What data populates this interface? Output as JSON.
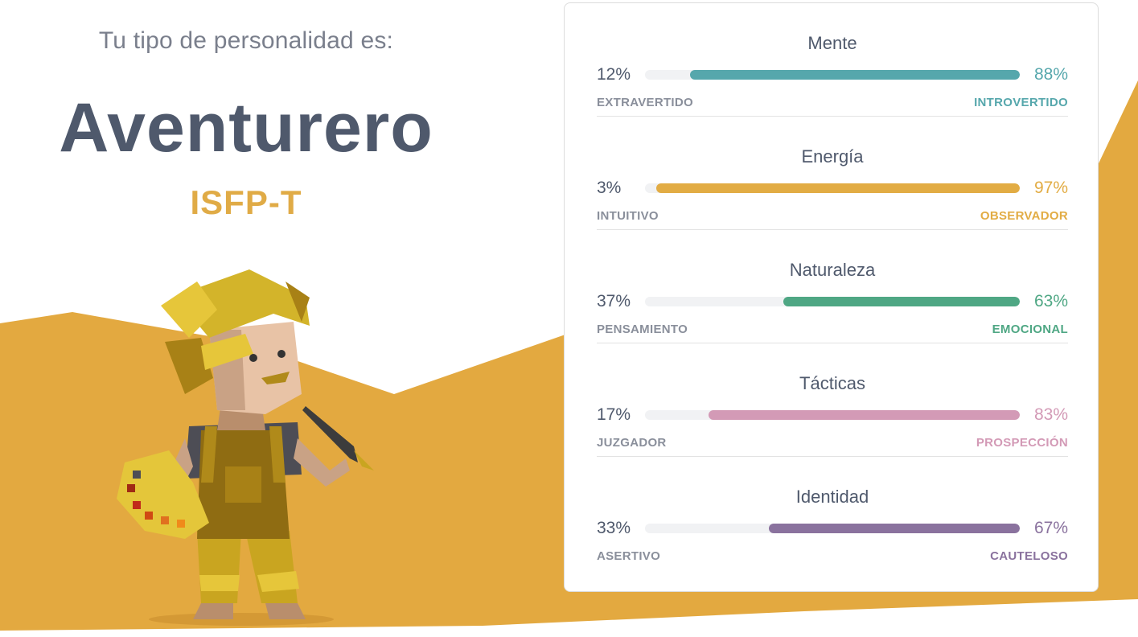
{
  "header": {
    "intro": "Tu tipo de personalidad es:",
    "type_name": "Aventurero",
    "type_code": "ISFP-T"
  },
  "colors": {
    "background_accent": "#e3a940",
    "title_text": "#4f596c",
    "code_text": "#e0ab46"
  },
  "traits": [
    {
      "title": "Mente",
      "left_pct": "12%",
      "right_pct": "88%",
      "left_label": "EXTRAVERTIDO",
      "right_label": "INTROVERTIDO",
      "fill_value": 88,
      "color": "#56a7ac"
    },
    {
      "title": "Energía",
      "left_pct": "3%",
      "right_pct": "97%",
      "left_label": "INTUITIVO",
      "right_label": "OBSERVADOR",
      "fill_value": 97,
      "color": "#e2ac44"
    },
    {
      "title": "Naturaleza",
      "left_pct": "37%",
      "right_pct": "63%",
      "left_label": "PENSAMIENTO",
      "right_label": "EMOCIONAL",
      "fill_value": 63,
      "color": "#4fa784"
    },
    {
      "title": "Tácticas",
      "left_pct": "17%",
      "right_pct": "83%",
      "left_label": "JUZGADOR",
      "right_label": "PROSPECCIÓN",
      "fill_value": 83,
      "color": "#d39ab6"
    },
    {
      "title": "Identidad",
      "left_pct": "33%",
      "right_pct": "67%",
      "left_label": "ASERTIVO",
      "right_label": "CAUTELOSO",
      "fill_value": 67,
      "color": "#8a729e"
    }
  ]
}
